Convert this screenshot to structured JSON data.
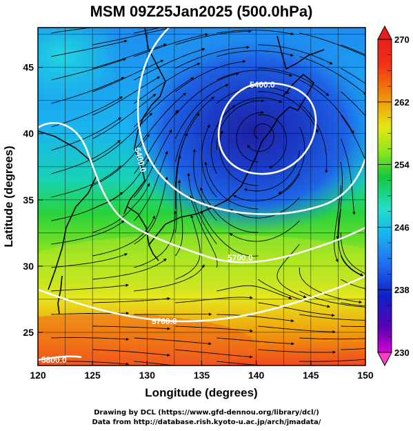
{
  "title": "MSM 09Z25Jan2025 (500.0hPa)",
  "xlabel": "Longitude (degrees)",
  "ylabel": "Latitude  (degrees)",
  "x_ticks": [
    "120",
    "125",
    "130",
    "135",
    "140",
    "145",
    "150"
  ],
  "y_ticks": [
    "25",
    "30",
    "35",
    "40",
    "45"
  ],
  "colorbar": {
    "ticks": [
      "270",
      "262",
      "254",
      "246",
      "238",
      "230"
    ],
    "min": 230,
    "max": 270
  },
  "contour_labels": [
    "5400.0",
    "5400.0",
    "5700.0",
    "5700.0",
    "5800.0"
  ],
  "credits": [
    "Drawing by DCL (https://www.gfd-dennou.org/library/dcl/)",
    "Data from http://database.rish.kyoto-u.ac.jp/arch/jmadata/"
  ],
  "chart_data": {
    "type": "heatmap",
    "title": "MSM 09Z25Jan2025 (500.0hPa)",
    "xlabel": "Longitude (degrees)",
    "ylabel": "Latitude  (degrees)",
    "xlim": [
      120,
      150
    ],
    "ylim": [
      22.5,
      48
    ],
    "colorbar_range": [
      230,
      270
    ],
    "low_center": {
      "lon": 140.5,
      "lat": 40.2,
      "value": 236
    },
    "contours": [
      {
        "level": "5400.0"
      },
      {
        "level": "5700.0"
      },
      {
        "level": "5800.0"
      }
    ],
    "overlays": [
      "wind streamlines with arrows",
      "coastlines",
      "lat/lon grid"
    ],
    "grid": true
  }
}
